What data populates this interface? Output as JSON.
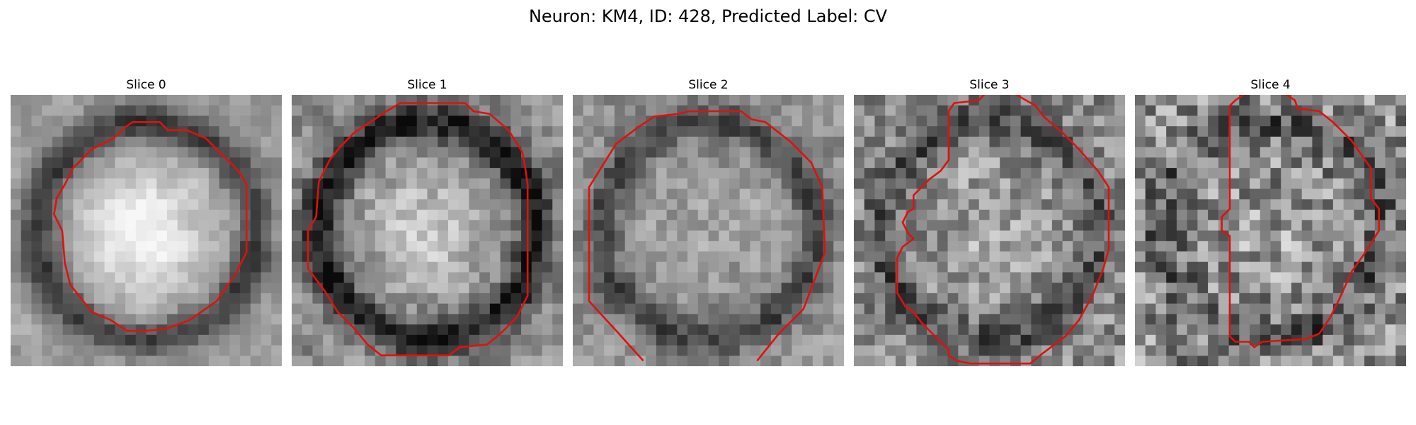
{
  "figure": {
    "title": "Neuron: KM4, ID: 428, Predicted Label: CV"
  },
  "panels": [
    {
      "title": "Slice 0",
      "seed": 11,
      "contour_color": "#e01010",
      "contour": [
        [
          0.45,
          0.1
        ],
        [
          0.55,
          0.1
        ],
        [
          0.58,
          0.13
        ],
        [
          0.65,
          0.13
        ],
        [
          0.72,
          0.16
        ],
        [
          0.84,
          0.28
        ],
        [
          0.87,
          0.33
        ],
        [
          0.87,
          0.58
        ],
        [
          0.83,
          0.66
        ],
        [
          0.76,
          0.76
        ],
        [
          0.66,
          0.83
        ],
        [
          0.58,
          0.86
        ],
        [
          0.5,
          0.87
        ],
        [
          0.43,
          0.87
        ],
        [
          0.37,
          0.83
        ],
        [
          0.3,
          0.8
        ],
        [
          0.22,
          0.7
        ],
        [
          0.2,
          0.62
        ],
        [
          0.19,
          0.5
        ],
        [
          0.16,
          0.44
        ],
        [
          0.17,
          0.38
        ],
        [
          0.2,
          0.33
        ],
        [
          0.23,
          0.27
        ],
        [
          0.3,
          0.2
        ],
        [
          0.38,
          0.16
        ],
        [
          0.42,
          0.12
        ]
      ],
      "closed": true
    },
    {
      "title": "Slice 1",
      "seed": 23,
      "contour_color": "#e01010",
      "contour": [
        [
          0.4,
          0.03
        ],
        [
          0.64,
          0.03
        ],
        [
          0.67,
          0.06
        ],
        [
          0.73,
          0.07
        ],
        [
          0.8,
          0.13
        ],
        [
          0.85,
          0.21
        ],
        [
          0.86,
          0.26
        ],
        [
          0.87,
          0.33
        ],
        [
          0.87,
          0.74
        ],
        [
          0.83,
          0.82
        ],
        [
          0.77,
          0.88
        ],
        [
          0.72,
          0.92
        ],
        [
          0.62,
          0.93
        ],
        [
          0.58,
          0.96
        ],
        [
          0.33,
          0.96
        ],
        [
          0.28,
          0.92
        ],
        [
          0.23,
          0.86
        ],
        [
          0.17,
          0.8
        ],
        [
          0.12,
          0.72
        ],
        [
          0.06,
          0.64
        ],
        [
          0.06,
          0.5
        ],
        [
          0.09,
          0.45
        ],
        [
          0.1,
          0.32
        ],
        [
          0.14,
          0.24
        ],
        [
          0.18,
          0.19
        ],
        [
          0.23,
          0.14
        ],
        [
          0.29,
          0.1
        ],
        [
          0.35,
          0.06
        ]
      ],
      "closed": true
    },
    {
      "title": "Slice 2",
      "seed": 37,
      "contour_color": "#e01010",
      "contour": [
        [
          0.26,
          0.98
        ],
        [
          0.17,
          0.88
        ],
        [
          0.06,
          0.76
        ],
        [
          0.06,
          0.34
        ],
        [
          0.11,
          0.26
        ],
        [
          0.16,
          0.18
        ],
        [
          0.24,
          0.12
        ],
        [
          0.3,
          0.08
        ],
        [
          0.39,
          0.07
        ],
        [
          0.43,
          0.06
        ],
        [
          0.62,
          0.06
        ],
        [
          0.66,
          0.09
        ],
        [
          0.71,
          0.1
        ],
        [
          0.8,
          0.17
        ],
        [
          0.88,
          0.25
        ],
        [
          0.92,
          0.34
        ],
        [
          0.93,
          0.58
        ],
        [
          0.9,
          0.66
        ],
        [
          0.85,
          0.79
        ],
        [
          0.76,
          0.88
        ],
        [
          0.68,
          0.98
        ]
      ],
      "closed": false
    },
    {
      "title": "Slice 3",
      "seed": 53,
      "contour_color": "#e01010",
      "contour": [
        [
          0.48,
          0.0
        ],
        [
          0.46,
          0.02
        ],
        [
          0.37,
          0.03
        ],
        [
          0.35,
          0.06
        ],
        [
          0.35,
          0.24
        ],
        [
          0.32,
          0.28
        ],
        [
          0.28,
          0.31
        ],
        [
          0.22,
          0.37
        ],
        [
          0.22,
          0.42
        ],
        [
          0.2,
          0.43
        ],
        [
          0.18,
          0.47
        ],
        [
          0.2,
          0.51
        ],
        [
          0.22,
          0.53
        ],
        [
          0.18,
          0.56
        ],
        [
          0.16,
          0.6
        ],
        [
          0.16,
          0.73
        ],
        [
          0.19,
          0.78
        ],
        [
          0.22,
          0.8
        ],
        [
          0.25,
          0.84
        ],
        [
          0.28,
          0.87
        ],
        [
          0.31,
          0.9
        ],
        [
          0.35,
          0.94
        ],
        [
          0.35,
          0.96
        ],
        [
          0.38,
          0.98
        ],
        [
          0.43,
          0.99
        ],
        [
          0.65,
          0.99
        ],
        [
          0.7,
          0.95
        ],
        [
          0.78,
          0.89
        ],
        [
          0.83,
          0.83
        ],
        [
          0.88,
          0.74
        ],
        [
          0.92,
          0.64
        ],
        [
          0.94,
          0.57
        ],
        [
          0.94,
          0.34
        ],
        [
          0.9,
          0.28
        ],
        [
          0.83,
          0.2
        ],
        [
          0.77,
          0.14
        ],
        [
          0.7,
          0.08
        ],
        [
          0.67,
          0.04
        ],
        [
          0.6,
          0.0
        ]
      ],
      "closed": false
    },
    {
      "title": "Slice 4",
      "seed": 71,
      "contour_color": "#e01010",
      "contour": [
        [
          0.4,
          0.0
        ],
        [
          0.37,
          0.02
        ],
        [
          0.35,
          0.04
        ],
        [
          0.35,
          0.42
        ],
        [
          0.32,
          0.45
        ],
        [
          0.32,
          0.5
        ],
        [
          0.35,
          0.52
        ],
        [
          0.35,
          0.89
        ],
        [
          0.37,
          0.91
        ],
        [
          0.42,
          0.91
        ],
        [
          0.44,
          0.93
        ],
        [
          0.47,
          0.91
        ],
        [
          0.63,
          0.9
        ],
        [
          0.68,
          0.88
        ],
        [
          0.72,
          0.82
        ],
        [
          0.75,
          0.76
        ],
        [
          0.8,
          0.65
        ],
        [
          0.85,
          0.58
        ],
        [
          0.9,
          0.5
        ],
        [
          0.9,
          0.42
        ],
        [
          0.87,
          0.38
        ],
        [
          0.87,
          0.27
        ],
        [
          0.8,
          0.17
        ],
        [
          0.73,
          0.1
        ],
        [
          0.68,
          0.06
        ],
        [
          0.6,
          0.05
        ],
        [
          0.59,
          0.02
        ],
        [
          0.56,
          0.0
        ]
      ],
      "closed": false
    }
  ]
}
